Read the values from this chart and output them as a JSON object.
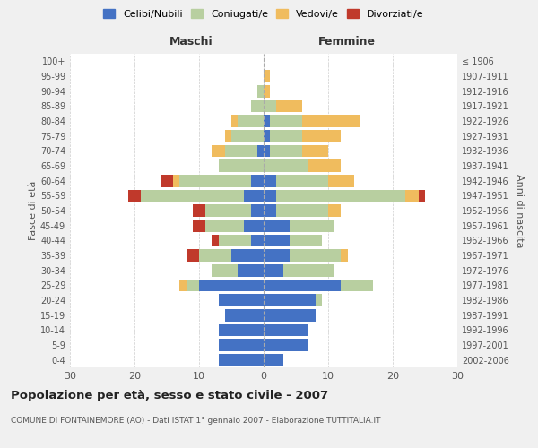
{
  "age_groups": [
    "0-4",
    "5-9",
    "10-14",
    "15-19",
    "20-24",
    "25-29",
    "30-34",
    "35-39",
    "40-44",
    "45-49",
    "50-54",
    "55-59",
    "60-64",
    "65-69",
    "70-74",
    "75-79",
    "80-84",
    "85-89",
    "90-94",
    "95-99",
    "100+"
  ],
  "birth_years": [
    "2002-2006",
    "1997-2001",
    "1992-1996",
    "1987-1991",
    "1982-1986",
    "1977-1981",
    "1972-1976",
    "1967-1971",
    "1962-1966",
    "1957-1961",
    "1952-1956",
    "1947-1951",
    "1942-1946",
    "1937-1941",
    "1932-1936",
    "1927-1931",
    "1922-1926",
    "1917-1921",
    "1912-1916",
    "1907-1911",
    "≤ 1906"
  ],
  "male": {
    "celibi": [
      7,
      7,
      7,
      6,
      7,
      10,
      4,
      5,
      2,
      3,
      2,
      3,
      2,
      0,
      1,
      0,
      0,
      0,
      0,
      0,
      0
    ],
    "coniugati": [
      0,
      0,
      0,
      0,
      0,
      2,
      4,
      5,
      5,
      6,
      7,
      16,
      11,
      7,
      5,
      5,
      4,
      2,
      1,
      0,
      0
    ],
    "vedovi": [
      0,
      0,
      0,
      0,
      0,
      1,
      0,
      0,
      0,
      0,
      0,
      0,
      1,
      0,
      2,
      1,
      1,
      0,
      0,
      0,
      0
    ],
    "divorziati": [
      0,
      0,
      0,
      0,
      0,
      0,
      0,
      2,
      1,
      2,
      2,
      2,
      2,
      0,
      0,
      0,
      0,
      0,
      0,
      0,
      0
    ]
  },
  "female": {
    "nubili": [
      3,
      7,
      7,
      8,
      8,
      12,
      3,
      4,
      4,
      4,
      2,
      2,
      2,
      0,
      1,
      1,
      1,
      0,
      0,
      0,
      0
    ],
    "coniugate": [
      0,
      0,
      0,
      0,
      1,
      5,
      8,
      8,
      5,
      7,
      8,
      20,
      8,
      7,
      5,
      5,
      5,
      2,
      0,
      0,
      0
    ],
    "vedove": [
      0,
      0,
      0,
      0,
      0,
      0,
      0,
      1,
      0,
      0,
      2,
      2,
      4,
      5,
      4,
      6,
      9,
      4,
      1,
      1,
      0
    ],
    "divorziate": [
      0,
      0,
      0,
      0,
      0,
      0,
      0,
      0,
      0,
      0,
      0,
      1,
      0,
      0,
      0,
      0,
      0,
      0,
      0,
      0,
      0
    ]
  },
  "colors": {
    "celibi_nubili": "#4472c4",
    "coniugati": "#b8cfa0",
    "vedovi": "#f0bc5e",
    "divorziati": "#c0392b"
  },
  "xlim": 30,
  "title": "Popolazione per età, sesso e stato civile - 2007",
  "subtitle": "COMUNE DI FONTAINEMORE (AO) - Dati ISTAT 1° gennaio 2007 - Elaborazione TUTTITALIA.IT",
  "ylabel_left": "Fasce di età",
  "ylabel_right": "Anni di nascita",
  "xlabel_left": "Maschi",
  "xlabel_right": "Femmine",
  "bg_color": "#f0f0f0",
  "plot_bg_color": "#ffffff"
}
